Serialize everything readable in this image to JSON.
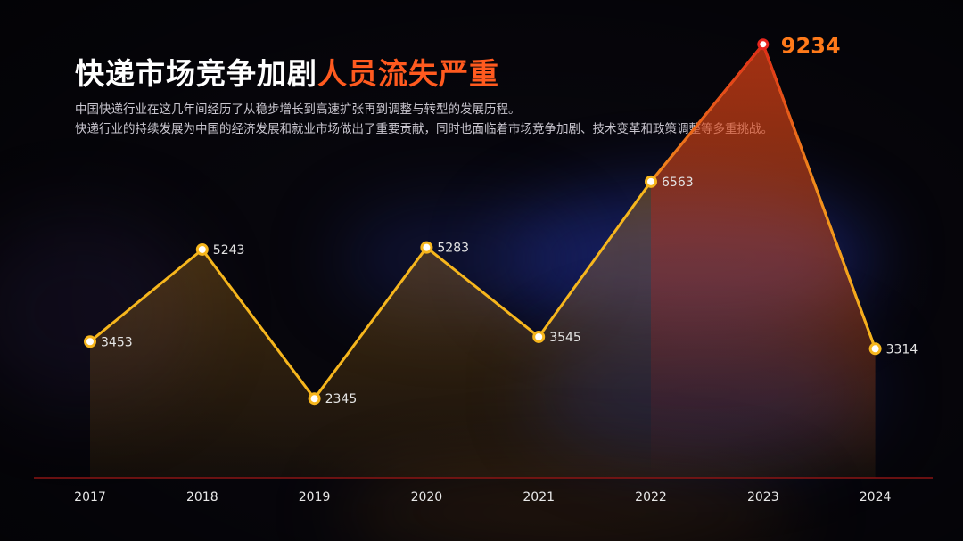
{
  "header": {
    "title_main": "快递市场竞争加剧",
    "title_highlight": "人员流失严重",
    "desc_line1": "中国快递行业在这几年间经历了从稳步增长到高速扩张再到调整与转型的发展历程。",
    "desc_line2": "快递行业的持续发展为中国的经济发展和就业市场做出了重要贡献，同时也面临着市场竞争加剧、技术变革和政策调整等多重挑战。"
  },
  "colors": {
    "accent": "#ff5a1f",
    "line": "#f6b61d",
    "peak": "#e8261e",
    "axis": "#8a1414"
  },
  "chart_data": {
    "type": "line",
    "categories": [
      "2017",
      "2018",
      "2019",
      "2020",
      "2021",
      "2022",
      "2023",
      "2024"
    ],
    "values": [
      3453,
      5243,
      2345,
      5283,
      3545,
      6563,
      9234,
      3314
    ],
    "highlight_index": 6,
    "grid": false,
    "legend": "none"
  }
}
